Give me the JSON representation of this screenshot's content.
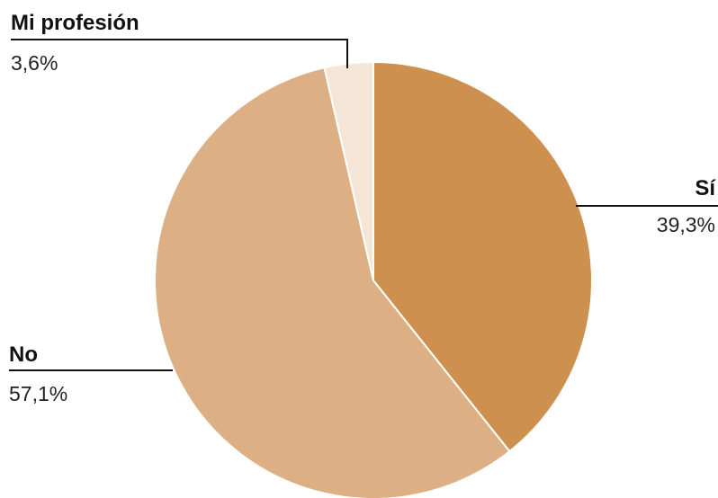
{
  "chart_data": {
    "type": "pie",
    "title": "",
    "slices": [
      {
        "label": "Sí",
        "value": 39.3,
        "display": "39,3%",
        "color": "#cd904f"
      },
      {
        "label": "No",
        "value": 57.1,
        "display": "57,1%",
        "color": "#dcb084"
      },
      {
        "label": "Mi profesión",
        "value": 3.6,
        "display": "3,6%",
        "color": "#f5e5d6"
      }
    ],
    "start_angle": "12 o'clock",
    "direction": "clockwise"
  }
}
